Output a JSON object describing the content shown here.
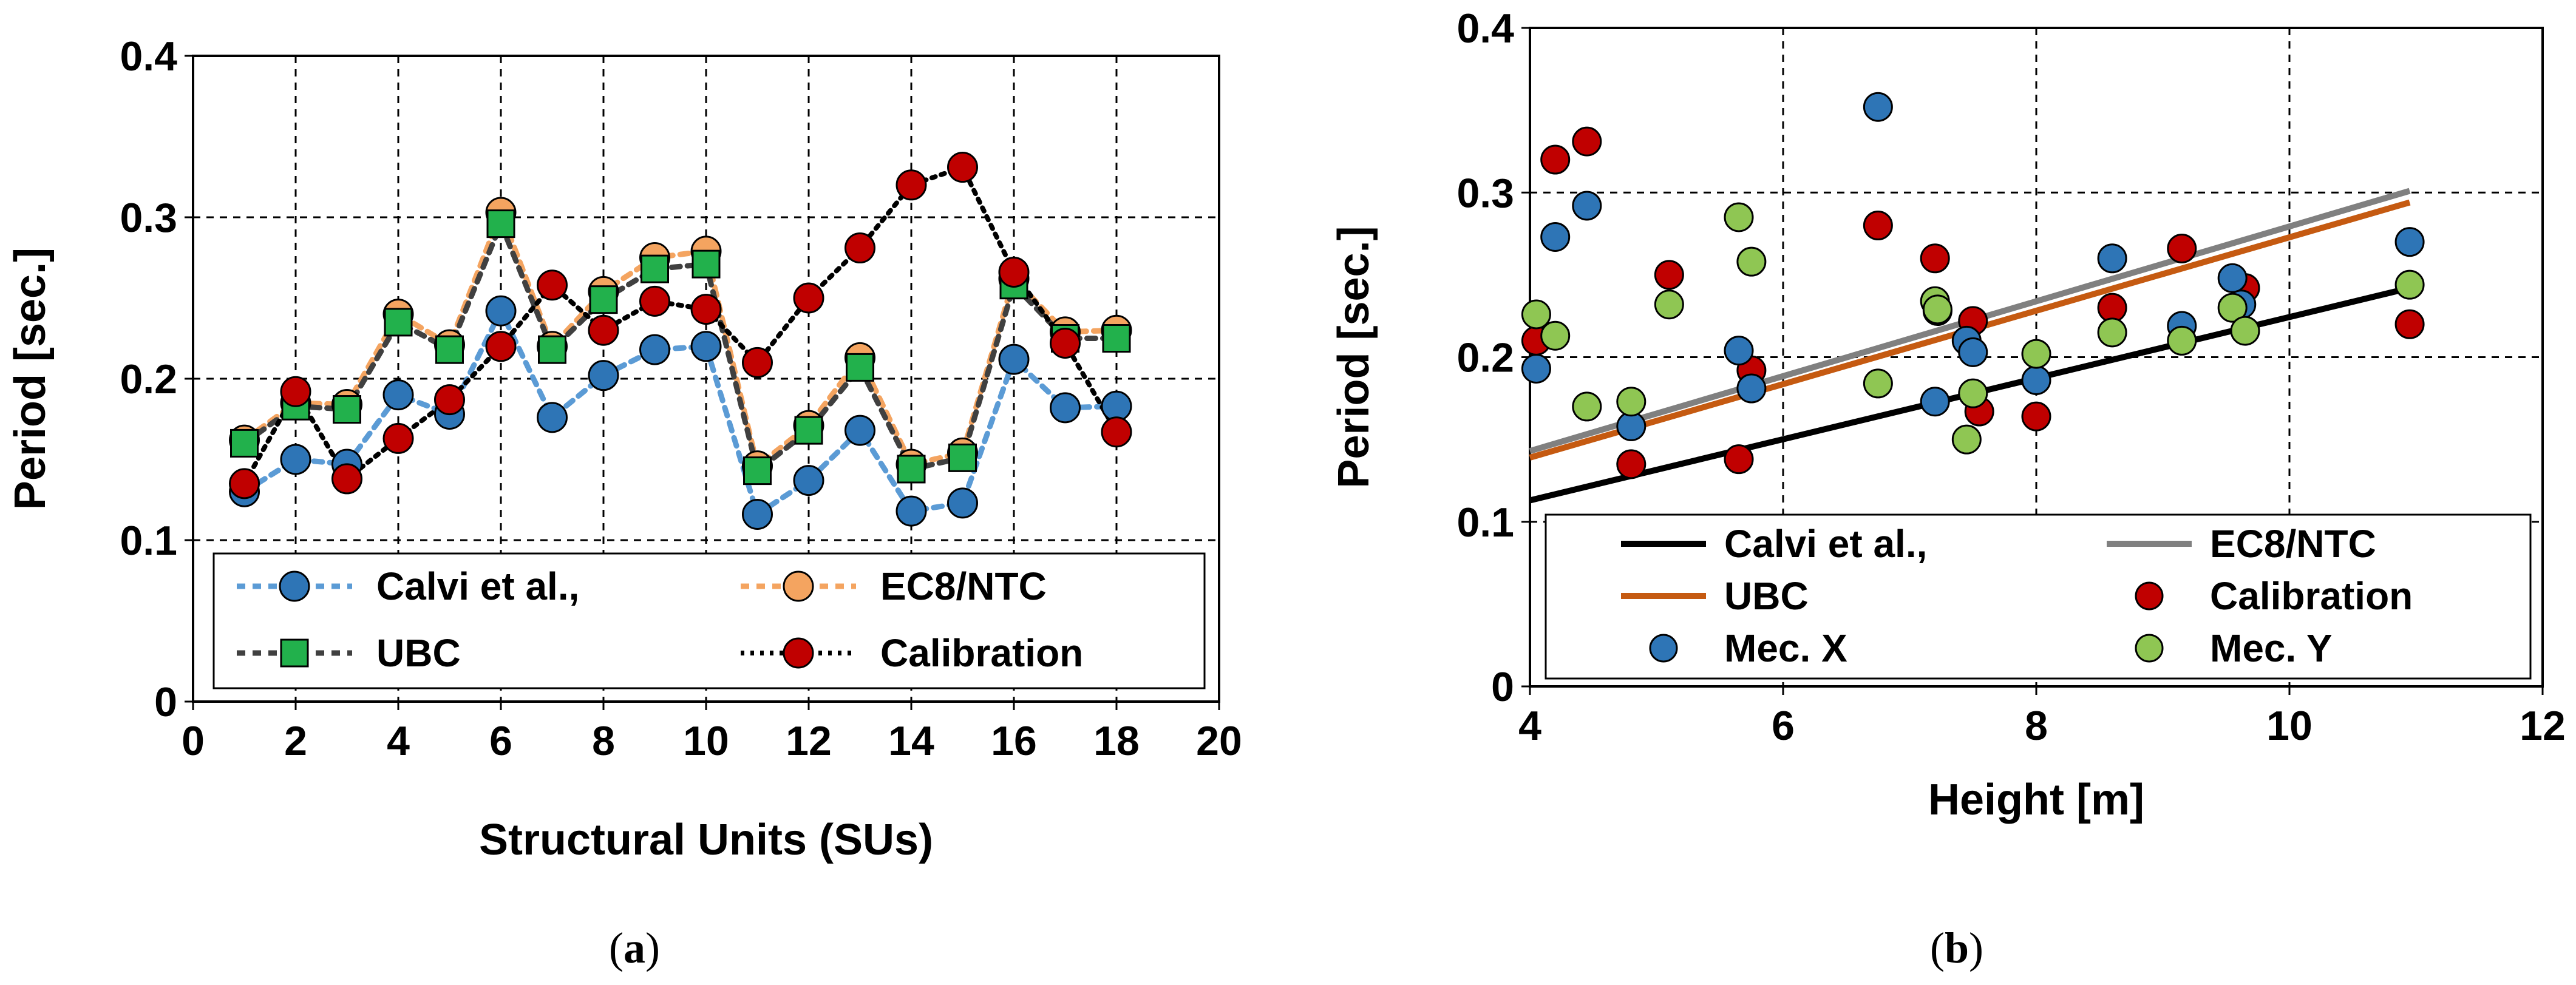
{
  "chart_data": [
    {
      "type": "line",
      "caption": "a",
      "xlabel": "Structural Units (SUs)",
      "ylabel": "Period [sec.]",
      "xlim": [
        0,
        20
      ],
      "ylim": [
        0,
        0.4
      ],
      "xticks": [
        "0",
        "2",
        "4",
        "6",
        "8",
        "10",
        "12",
        "14",
        "16",
        "18",
        "20"
      ],
      "yticks": [
        "0",
        "0.1",
        "0.2",
        "0.3",
        "0.4"
      ],
      "grid": true,
      "legend_position": "bottom",
      "x": [
        1,
        2,
        3,
        4,
        5,
        6,
        7,
        8,
        9,
        10,
        11,
        12,
        13,
        14,
        15,
        16,
        17,
        18
      ],
      "series": [
        {
          "name": "Calvi et al.,",
          "color": "#2e75b6",
          "line_color": "#5b9bd5",
          "marker": "circle",
          "values": [
            0.13,
            0.15,
            0.147,
            0.19,
            0.178,
            0.242,
            0.176,
            0.202,
            0.218,
            0.22,
            0.116,
            0.137,
            0.168,
            0.118,
            0.123,
            0.212,
            0.182,
            0.183
          ]
        },
        {
          "name": "EC8/NTC",
          "color": "#f4a460",
          "line_color": "#f4a460",
          "marker": "circle",
          "values": [
            0.162,
            0.185,
            0.184,
            0.24,
            0.221,
            0.303,
            0.22,
            0.254,
            0.275,
            0.279,
            0.146,
            0.171,
            0.213,
            0.147,
            0.154,
            0.262,
            0.229,
            0.23
          ]
        },
        {
          "name": "UBC",
          "color": "#22b14c",
          "line_color": "#404040",
          "marker": "square",
          "values": [
            0.16,
            0.183,
            0.181,
            0.235,
            0.218,
            0.296,
            0.218,
            0.249,
            0.268,
            0.271,
            0.143,
            0.168,
            0.207,
            0.144,
            0.151,
            0.258,
            0.225,
            0.225
          ]
        },
        {
          "name": "Calibration",
          "color": "#c00000",
          "line_color": "#000000",
          "marker": "circle",
          "values": [
            0.135,
            0.192,
            0.138,
            0.163,
            0.187,
            0.22,
            0.258,
            0.23,
            0.248,
            0.243,
            0.21,
            0.25,
            0.281,
            0.32,
            0.331,
            0.266,
            0.222,
            0.167
          ]
        }
      ]
    },
    {
      "type": "scatter",
      "caption": "b",
      "xlabel": "Height [m]",
      "ylabel": "Period [sec.]",
      "xlim": [
        4,
        12
      ],
      "ylim": [
        0,
        0.4
      ],
      "xticks": [
        "4",
        "6",
        "8",
        "10",
        "12"
      ],
      "yticks": [
        "0",
        "0.1",
        "0.2",
        "0.3",
        "0.4"
      ],
      "grid": true,
      "legend_position": "bottom",
      "lines": [
        {
          "name": "Calvi et al.,",
          "color": "#000000",
          "x": [
            4.0,
            10.95
          ],
          "y": [
            0.113,
            0.242
          ]
        },
        {
          "name": "EC8/NTC",
          "color": "#808080",
          "x": [
            4.0,
            10.95
          ],
          "y": [
            0.143,
            0.301
          ]
        },
        {
          "name": "UBC",
          "color": "#c55a11",
          "x": [
            4.0,
            10.95
          ],
          "y": [
            0.139,
            0.294
          ]
        }
      ],
      "series": [
        {
          "name": "Calibration",
          "color": "#c00000",
          "x": [
            4.05,
            4.2,
            4.45,
            4.8,
            5.1,
            5.65,
            5.75,
            6.75,
            7.2,
            7.5,
            7.55,
            8.0,
            8.6,
            9.15,
            9.65,
            10.95
          ],
          "y": [
            0.21,
            0.32,
            0.331,
            0.135,
            0.25,
            0.138,
            0.192,
            0.28,
            0.26,
            0.222,
            0.167,
            0.164,
            0.23,
            0.266,
            0.242,
            0.22
          ]
        },
        {
          "name": "Mec. X",
          "color": "#2e75b6",
          "x": [
            4.05,
            4.2,
            4.45,
            4.8,
            5.65,
            5.75,
            6.75,
            7.2,
            7.22,
            7.45,
            7.5,
            8.0,
            8.6,
            9.15,
            9.55,
            9.62,
            10.95
          ],
          "y": [
            0.193,
            0.273,
            0.292,
            0.158,
            0.204,
            0.181,
            0.352,
            0.173,
            0.228,
            0.21,
            0.203,
            0.186,
            0.26,
            0.219,
            0.248,
            0.232,
            0.27
          ]
        },
        {
          "name": "Mec. Y",
          "color": "#8fc653",
          "x": [
            4.05,
            4.2,
            4.45,
            4.8,
            5.1,
            5.65,
            5.75,
            6.75,
            7.2,
            7.22,
            7.45,
            7.5,
            8.0,
            8.6,
            9.15,
            9.55,
            9.65,
            10.95
          ],
          "y": [
            0.226,
            0.213,
            0.17,
            0.173,
            0.232,
            0.285,
            0.258,
            0.184,
            0.234,
            0.229,
            0.15,
            0.178,
            0.202,
            0.215,
            0.21,
            0.23,
            0.216,
            0.244
          ]
        }
      ]
    }
  ]
}
